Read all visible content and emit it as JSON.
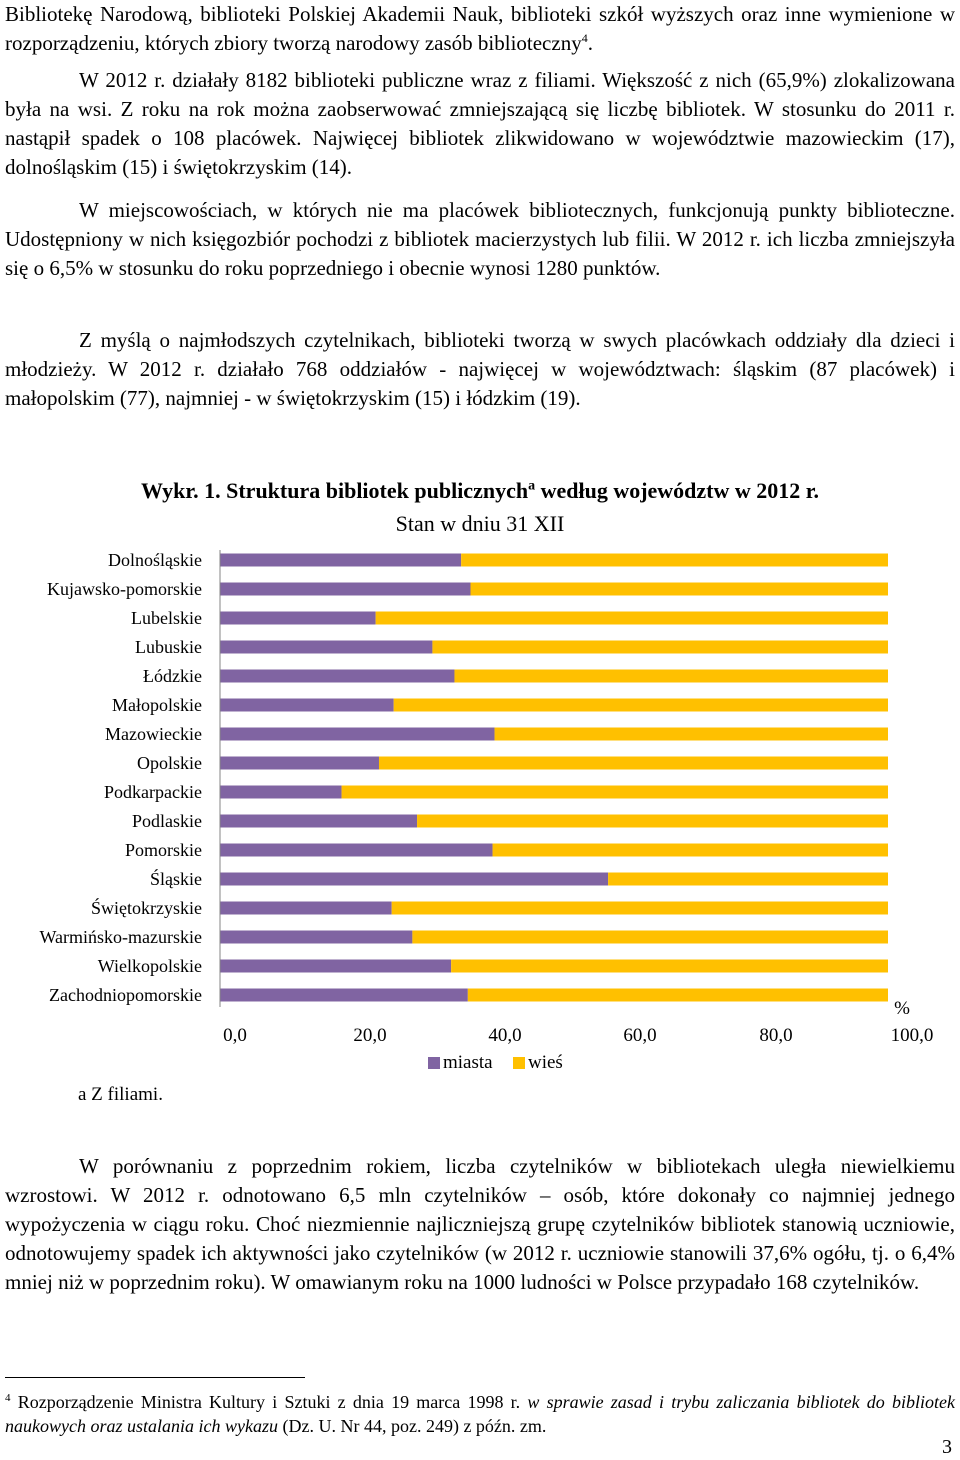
{
  "paragraphs": {
    "p1": "Bibliotekę Narodową, biblioteki Polskiej Akademii Nauk, biblioteki szkół wyższych oraz inne wymienione w rozporządzeniu, których zbiory tworzą narodowy zasób biblioteczny",
    "p1_ref": "4",
    "p1_end": ".",
    "p2": "W 2012 r. działały 8182 biblioteki publiczne wraz z filiami. Większość z nich (65,9%) zlokalizowana była na wsi. Z roku na rok można zaobserwować zmniejszającą się liczbę bibliotek. W stosunku do 2011 r. nastąpił spadek o 108 placówek. Najwięcej bibliotek zlikwidowano w województwie mazowieckim (17), dolnośląskim (15) i świętokrzyskim (14).",
    "p3": "W miejscowościach, w których nie ma placówek bibliotecznych, funkcjonują punkty biblioteczne. Udostępniony w nich księgozbiór pochodzi z bibliotek macierzystych lub filii. W 2012 r. ich liczba zmniejszyła się o 6,5% w stosunku do roku poprzedniego i obecnie wynosi 1280 punktów.",
    "p4": "Z myślą o najmłodszych czytelnikach, biblioteki tworzą w swych placówkach oddziały dla dzieci i młodzieży. W 2012 r. działało 768 oddziałów - najwięcej w województwach: śląskim (87 placówek) i małopolskim (77), najmniej - w świętokrzyskim (15) i łódzkim (19).",
    "p5": "W porównaniu z poprzednim rokiem, liczba czytelników w bibliotekach uległa niewielkiemu wzrostowi. W 2012 r. odnotowano 6,5 mln czytelników – osób, które dokonały co najmniej jednego wypożyczenia w ciągu roku. Choć niezmiennie najliczniejszą grupę czytelników bibliotek stanowią uczniowie, odnotowujemy spadek ich aktywności jako czytelników (w 2012 r. uczniowie stanowili 37,6% ogółu, tj. o 6,4% mniej niż w poprzednim roku). W omawianym roku na 1000 ludności w Polsce przypadało 168 czytelników."
  },
  "chart": {
    "title": "Wykr. 1. Struktura bibliotek publicznych",
    "title_sup": "a",
    "title_end": " według województw w 2012 r.",
    "subtitle": "Stan w dniu 31 XII",
    "note": "a Z filiami.",
    "axis_unit": "%",
    "colors": {
      "miasta": "#8064A2",
      "wies": "#FFC000",
      "axis": "#868686"
    }
  },
  "chart_data": {
    "type": "bar",
    "orientation": "horizontal",
    "stacked": true,
    "categories": [
      "Dolnośląskie",
      "Kujawsko-pomorskie",
      "Lubelskie",
      "Lubuskie",
      "Łódzkie",
      "Małopolskie",
      "Mazowieckie",
      "Opolskie",
      "Podkarpackie",
      "Podlaskie",
      "Pomorskie",
      "Śląskie",
      "Świętokrzyskie",
      "Warmińsko-mazurskie",
      "Wielkopolskie",
      "Zachodniopomorskie"
    ],
    "series": [
      {
        "name": "miasta",
        "values": [
          36.1,
          37.5,
          23.3,
          31.8,
          35.1,
          26.0,
          41.1,
          23.8,
          18.2,
          29.5,
          40.8,
          58.1,
          25.7,
          28.8,
          34.6,
          37.1
        ]
      },
      {
        "name": "wieś",
        "values": [
          63.9,
          62.5,
          76.7,
          68.2,
          64.9,
          74.0,
          58.9,
          76.2,
          81.8,
          70.5,
          59.2,
          41.9,
          74.3,
          71.2,
          65.4,
          62.9
        ]
      }
    ],
    "xlim": [
      0,
      100
    ],
    "xticks": [
      "0,0",
      "20,0",
      "40,0",
      "60,0",
      "80,0",
      "100,0"
    ],
    "xlabel": "%",
    "legend": "bottom"
  },
  "footnote": {
    "ref": "4",
    "text_normal": " Rozporządzenie Ministra Kultury i Sztuki z dnia 19 marca 1998 r. ",
    "text_italic": "w sprawie zasad i trybu zaliczania bibliotek do bibliotek naukowych oraz ustalania ich wykazu",
    "text_end": " (Dz. U. Nr 44, poz. 249) z późn. zm."
  },
  "page_number": "3"
}
